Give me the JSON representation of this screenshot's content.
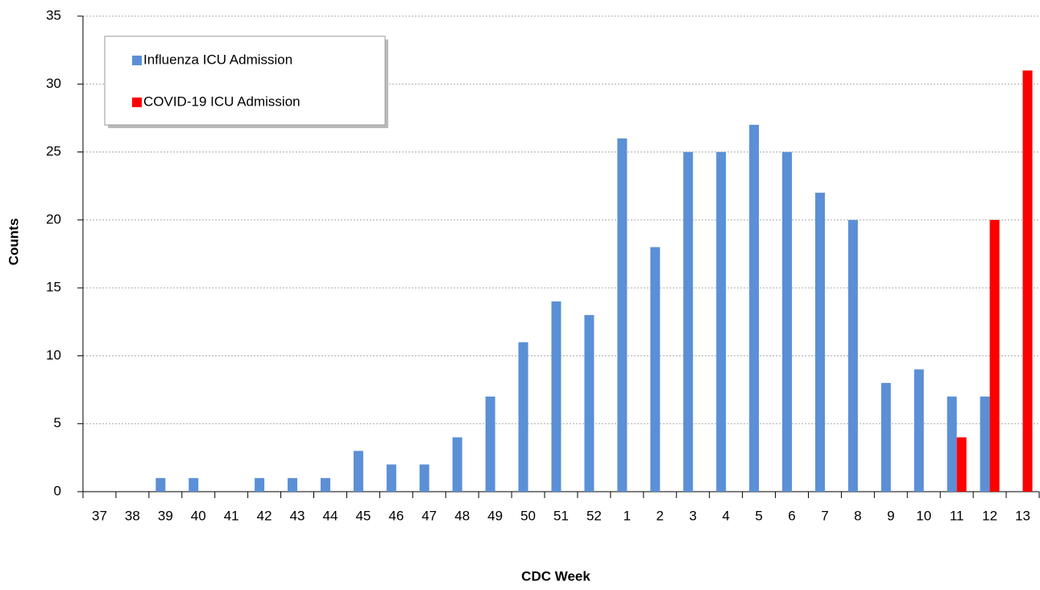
{
  "chart_data": {
    "type": "bar",
    "x_label": "CDC Week",
    "y_label": "Counts",
    "categories": [
      "37",
      "38",
      "39",
      "40",
      "41",
      "42",
      "43",
      "44",
      "45",
      "46",
      "47",
      "48",
      "49",
      "50",
      "51",
      "52",
      "1",
      "2",
      "3",
      "4",
      "5",
      "6",
      "7",
      "8",
      "9",
      "10",
      "11",
      "12",
      "13"
    ],
    "series": [
      {
        "name": "Influenza ICU Admission",
        "color": "#5b8fd6",
        "values": [
          0,
          0,
          1,
          1,
          0,
          1,
          1,
          1,
          3,
          2,
          2,
          4,
          7,
          11,
          14,
          13,
          26,
          18,
          25,
          25,
          27,
          25,
          22,
          20,
          8,
          9,
          7,
          7,
          0
        ]
      },
      {
        "name": "COVID-19 ICU Admission",
        "color": "#ff0000",
        "values": [
          0,
          0,
          0,
          0,
          0,
          0,
          0,
          0,
          0,
          0,
          0,
          0,
          0,
          0,
          0,
          0,
          0,
          0,
          0,
          0,
          0,
          0,
          0,
          0,
          0,
          0,
          4,
          20,
          31
        ]
      }
    ],
    "ylim": [
      0,
      35
    ],
    "yticks": [
      0,
      5,
      10,
      15,
      20,
      25,
      30,
      35
    ],
    "grid": true,
    "legend": "upper-left"
  }
}
